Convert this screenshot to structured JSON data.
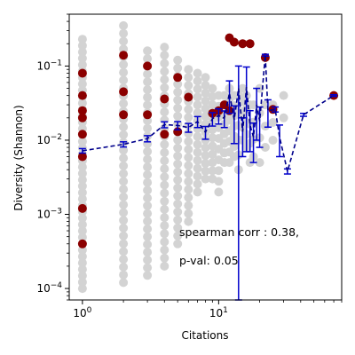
{
  "chart_data": {
    "type": "scatter",
    "xlabel": "Citations",
    "ylabel": "Diversity (Shannon)",
    "xscale": "log",
    "yscale": "log",
    "xlim": [
      0.8,
      80
    ],
    "ylim": [
      7e-05,
      0.5
    ],
    "x_ticks": [
      {
        "value": 1,
        "base": "10",
        "exp": "0"
      },
      {
        "value": 10,
        "base": "10",
        "exp": "1"
      }
    ],
    "y_ticks": [
      {
        "value": 0.0001,
        "base": "10",
        "exp": "−4"
      },
      {
        "value": 0.001,
        "base": "10",
        "exp": "−3"
      },
      {
        "value": 0.01,
        "base": "10",
        "exp": "−2"
      },
      {
        "value": 0.1,
        "base": "10",
        "exp": "−1"
      }
    ],
    "grid": false,
    "colors": {
      "background_points": "#d3d3d3",
      "highlight_points": "#8b0000",
      "trend_line": "#00008b",
      "error_bars": "#0000cc"
    },
    "annotation_lines": [
      "spearman corr : 0.38,",
      "p-val: 0.05"
    ],
    "background_points": [
      {
        "x": 1,
        "y_range": [
          0.0001,
          0.23
        ],
        "count": 40
      },
      {
        "x": 2,
        "y_range": [
          0.00012,
          0.35
        ],
        "count": 34
      },
      {
        "x": 3,
        "y_range": [
          0.00015,
          0.16
        ],
        "count": 30
      },
      {
        "x": 4,
        "y_range": [
          0.0002,
          0.18
        ],
        "count": 28
      },
      {
        "x": 5,
        "y_range": [
          0.0004,
          0.12
        ],
        "count": 24
      },
      {
        "x": 6,
        "y_range": [
          0.0008,
          0.09
        ],
        "count": 20
      },
      {
        "x": 7,
        "y_range": [
          0.002,
          0.08
        ],
        "count": 16
      },
      {
        "x": 8,
        "y_range": [
          0.003,
          0.07
        ],
        "count": 14
      },
      {
        "x": 9,
        "y_range": [
          0.003,
          0.05
        ],
        "count": 12
      },
      {
        "x": 10,
        "y_range": [
          0.002,
          0.04
        ],
        "count": 10
      },
      {
        "x": 11,
        "y_range": [
          0.005,
          0.04
        ],
        "count": 8
      },
      {
        "x": 12,
        "y_range": [
          0.005,
          0.05
        ],
        "count": 8
      },
      {
        "x": 13,
        "y_range": [
          0.006,
          0.04
        ],
        "count": 7
      },
      {
        "x": 14,
        "y_range": [
          0.004,
          0.04
        ],
        "count": 6
      },
      {
        "x": 15,
        "y_range": [
          0.01,
          0.05
        ],
        "count": 5
      },
      {
        "x": 16,
        "y_range": [
          0.008,
          0.04
        ],
        "count": 5
      },
      {
        "x": 17,
        "y_range": [
          0.005,
          0.03
        ],
        "count": 4
      },
      {
        "x": 18,
        "y_range": [
          0.006,
          0.03
        ],
        "count": 4
      },
      {
        "x": 20,
        "y_range": [
          0.005,
          0.05
        ],
        "count": 4
      },
      {
        "x": 22,
        "y_range": [
          0.008,
          0.03
        ],
        "count": 3
      },
      {
        "x": 25,
        "y_range": [
          0.01,
          0.03
        ],
        "count": 3
      },
      {
        "x": 30,
        "y_range": [
          0.02,
          0.04
        ],
        "count": 2
      }
    ],
    "highlight_points": [
      {
        "x": 1,
        "y": 0.04
      },
      {
        "x": 1,
        "y": 0.025
      },
      {
        "x": 1,
        "y": 0.02
      },
      {
        "x": 1,
        "y": 0.012
      },
      {
        "x": 1,
        "y": 0.006
      },
      {
        "x": 1,
        "y": 0.0012
      },
      {
        "x": 1,
        "y": 0.0004
      },
      {
        "x": 1,
        "y": 0.08
      },
      {
        "x": 2,
        "y": 0.14
      },
      {
        "x": 2,
        "y": 0.045
      },
      {
        "x": 2,
        "y": 0.022
      },
      {
        "x": 3,
        "y": 0.1
      },
      {
        "x": 3,
        "y": 0.022
      },
      {
        "x": 4,
        "y": 0.036
      },
      {
        "x": 4,
        "y": 0.012
      },
      {
        "x": 5,
        "y": 0.07
      },
      {
        "x": 5,
        "y": 0.013
      },
      {
        "x": 6,
        "y": 0.038
      },
      {
        "x": 9,
        "y": 0.023
      },
      {
        "x": 10,
        "y": 0.025
      },
      {
        "x": 11,
        "y": 0.03
      },
      {
        "x": 12,
        "y": 0.24
      },
      {
        "x": 12,
        "y": 0.025
      },
      {
        "x": 13,
        "y": 0.21
      },
      {
        "x": 15,
        "y": 0.2
      },
      {
        "x": 17,
        "y": 0.2
      },
      {
        "x": 22,
        "y": 0.13
      },
      {
        "x": 25,
        "y": 0.026
      },
      {
        "x": 70,
        "y": 0.04
      }
    ],
    "trend": [
      {
        "x": 1,
        "y": 0.0072,
        "err": 0.0005
      },
      {
        "x": 2,
        "y": 0.0088,
        "err": 0.0007
      },
      {
        "x": 3,
        "y": 0.0105,
        "err": 0.001
      },
      {
        "x": 4,
        "y": 0.0162,
        "err": 0.0015
      },
      {
        "x": 5,
        "y": 0.0158,
        "err": 0.002
      },
      {
        "x": 6,
        "y": 0.0148,
        "err": 0.002
      },
      {
        "x": 7,
        "y": 0.0178,
        "err": 0.003
      },
      {
        "x": 8,
        "y": 0.0128,
        "err": 0.0025
      },
      {
        "x": 9,
        "y": 0.0195,
        "err": 0.004
      },
      {
        "x": 10,
        "y": 0.0215,
        "err": 0.005
      },
      {
        "x": 11,
        "y": 0.0198,
        "err": 0.005
      },
      {
        "x": 12,
        "y": 0.043,
        "err": 0.02
      },
      {
        "x": 13,
        "y": 0.019,
        "err": 0.01
      },
      {
        "x": 14,
        "y": 0.05,
        "err": 0.05
      },
      {
        "x": 15,
        "y": 0.013,
        "err": 0.007
      },
      {
        "x": 16,
        "y": 0.052,
        "err": 0.045
      },
      {
        "x": 17,
        "y": 0.016,
        "err": 0.009
      },
      {
        "x": 18,
        "y": 0.011,
        "err": 0.006
      },
      {
        "x": 19,
        "y": 0.03,
        "err": 0.02
      },
      {
        "x": 20,
        "y": 0.018,
        "err": 0.01
      },
      {
        "x": 22,
        "y": 0.14,
        "err": 0.004
      },
      {
        "x": 23,
        "y": 0.025,
        "err": 0.01
      },
      {
        "x": 26,
        "y": 0.026,
        "err": 0.002
      },
      {
        "x": 28,
        "y": 0.011,
        "err": 0.005
      },
      {
        "x": 32,
        "y": 0.0038,
        "err": 0.0003
      },
      {
        "x": 42,
        "y": 0.022,
        "err": 0.001
      },
      {
        "x": 70,
        "y": 0.04,
        "err": 0.001
      }
    ]
  }
}
